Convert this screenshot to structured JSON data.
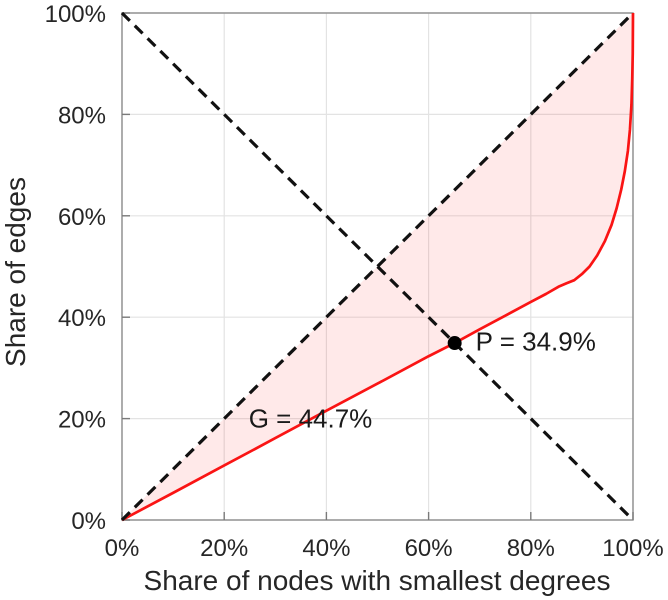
{
  "axes": {
    "x_tick_labels": [
      "0%",
      "20%",
      "40%",
      "60%",
      "80%",
      "100%"
    ],
    "y_tick_labels": [
      "0%",
      "20%",
      "40%",
      "60%",
      "80%",
      "100%"
    ],
    "x_tick_values": [
      0,
      20,
      40,
      60,
      80,
      100
    ],
    "y_tick_values": [
      0,
      20,
      40,
      60,
      80,
      100
    ],
    "grid": true,
    "grid_color": "#e3e3e3",
    "box_color": "#8c8c8c",
    "tick_color": "#7a7a7a",
    "tick_label_color": "#262626"
  },
  "chart_data": {
    "type": "line",
    "title": "",
    "xlabel": "Share of nodes with smallest degrees",
    "ylabel": "Share of edges",
    "xlim": [
      0,
      100
    ],
    "ylim": [
      0,
      100
    ],
    "grid": true,
    "legend": "none",
    "series": [
      {
        "name": "lorenz-curve",
        "color": "#fa1414",
        "style": "solid",
        "width": 2.7,
        "fill_to_diagonal": "rgba(250,20,20,0.095)",
        "points": [
          [
            0,
            0
          ],
          [
            10,
            5.35
          ],
          [
            20,
            10.75
          ],
          [
            30,
            16.15
          ],
          [
            40,
            21.55
          ],
          [
            50,
            26.9
          ],
          [
            60,
            32.3
          ],
          [
            65.1,
            34.9
          ],
          [
            70,
            37.6
          ],
          [
            75,
            40.3
          ],
          [
            80,
            43.0
          ],
          [
            83,
            44.6
          ],
          [
            85.4,
            46.0
          ],
          [
            87,
            46.7
          ],
          [
            88.5,
            47.3
          ],
          [
            90,
            48.5
          ],
          [
            91.5,
            50.0
          ],
          [
            93,
            52.2
          ],
          [
            94.5,
            55.0
          ],
          [
            95.8,
            58.2
          ],
          [
            96.8,
            61.5
          ],
          [
            97.7,
            65.2
          ],
          [
            98.4,
            68.8
          ],
          [
            99.0,
            72.8
          ],
          [
            99.4,
            77.0
          ],
          [
            99.7,
            82.0
          ],
          [
            99.85,
            87.0
          ],
          [
            99.95,
            92.0
          ],
          [
            100,
            100
          ]
        ]
      },
      {
        "name": "equality-diagonal",
        "color": "#111111",
        "style": "dashed",
        "width": 3.2,
        "points": [
          [
            0,
            0
          ],
          [
            100,
            100
          ]
        ]
      },
      {
        "name": "anti-diagonal",
        "color": "#111111",
        "style": "dashed",
        "width": 3.2,
        "points": [
          [
            0,
            100
          ],
          [
            100,
            0
          ]
        ]
      }
    ],
    "marker": {
      "x": 65.1,
      "y": 34.9,
      "radius": 7,
      "color": "#000000"
    },
    "annotations": [
      {
        "text": "G = 44.7%",
        "x": 24.8,
        "y": 20.0,
        "anchor": "start"
      },
      {
        "text": "P = 34.9%",
        "x": 69.2,
        "y": 35.2,
        "anchor": "start"
      }
    ]
  }
}
